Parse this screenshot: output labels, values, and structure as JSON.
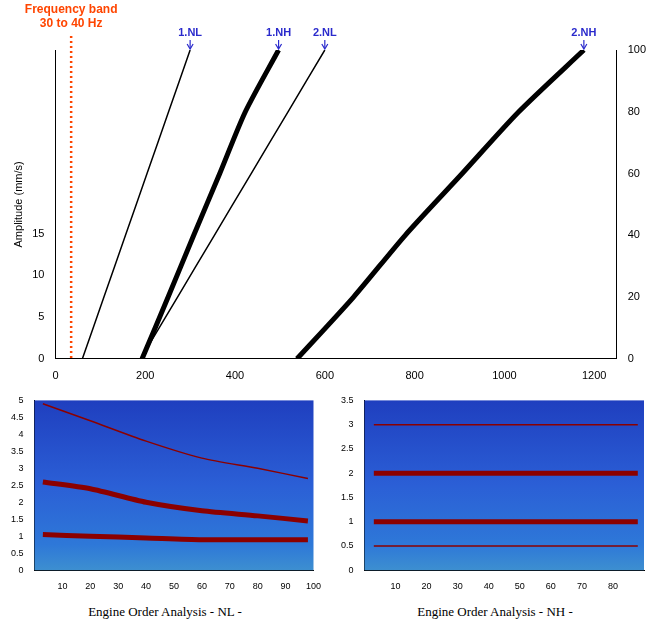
{
  "chart_data": [
    {
      "type": "line",
      "ylabel": "Amplitude (mm/s)",
      "xlim": [
        0,
        1250
      ],
      "xticks": [
        0,
        200,
        400,
        600,
        800,
        1000,
        1200
      ],
      "ylim": [
        0,
        37
      ],
      "yticks": [
        0,
        5,
        10,
        15
      ],
      "y2lim": [
        0,
        100
      ],
      "y2ticks": [
        0,
        20,
        40,
        60,
        80,
        100
      ],
      "grid": false,
      "series": [
        {
          "name": "1.NL",
          "color": "#000000",
          "line_style": "solid",
          "axis": "y2",
          "x": [
            60,
            108,
            156,
            204,
            252,
            300
          ],
          "values": [
            0,
            20,
            40,
            60,
            80,
            100
          ]
        },
        {
          "name": "1.NH",
          "color": "#000000",
          "line_style": "bold",
          "axis": "y2",
          "x": [
            193,
            251,
            308,
            366,
            423,
            497
          ],
          "values": [
            0,
            20,
            40,
            60,
            80,
            100
          ]
        },
        {
          "name": "2.NL",
          "color": "#000000",
          "line_style": "solid",
          "axis": "y2",
          "x": [
            190,
            272,
            354,
            436,
            518,
            600
          ],
          "values": [
            0,
            20,
            40,
            60,
            80,
            100
          ]
        },
        {
          "name": "2.NH",
          "color": "#000000",
          "line_style": "bold",
          "axis": "y2",
          "x": [
            538,
            664,
            779,
            906,
            1032,
            1177
          ],
          "values": [
            0,
            20,
            40,
            60,
            80,
            100
          ]
        }
      ],
      "annotations": [
        {
          "text": [
            "Frequency band",
            "30 to 40 Hz"
          ],
          "x": 35,
          "color": "#ff4500",
          "line_style": "dotted"
        }
      ]
    },
    {
      "type": "line",
      "caption": "Engine Order Analysis - NL -",
      "xlim": [
        0,
        100
      ],
      "xticks": [
        10,
        20,
        30,
        40,
        50,
        60,
        70,
        80,
        90,
        100
      ],
      "ylim": [
        0,
        5
      ],
      "yticks": [
        0,
        0.5,
        1,
        1.5,
        2,
        2.5,
        3,
        3.5,
        4,
        4.5,
        5
      ],
      "grid": false,
      "series": [
        {
          "color": "#8b0000",
          "line_style": "solid",
          "x": [
            3,
            20,
            40,
            60,
            80,
            98
          ],
          "values": [
            4.9,
            4.4,
            3.8,
            3.3,
            3.0,
            2.7
          ]
        },
        {
          "color": "#8b0000",
          "line_style": "bold",
          "x": [
            3,
            20,
            40,
            60,
            80,
            98
          ],
          "values": [
            2.6,
            2.4,
            2.0,
            1.75,
            1.6,
            1.45
          ]
        },
        {
          "color": "#8b0000",
          "line_style": "bold",
          "x": [
            3,
            20,
            40,
            60,
            80,
            98
          ],
          "values": [
            1.05,
            1.0,
            0.95,
            0.9,
            0.9,
            0.9
          ]
        }
      ]
    },
    {
      "type": "line",
      "caption": "Engine Order Analysis - NH -",
      "xlim": [
        0,
        90
      ],
      "xticks": [
        10,
        20,
        30,
        40,
        50,
        60,
        70,
        80
      ],
      "ylim": [
        0,
        3.5
      ],
      "yticks": [
        0,
        0.5,
        1,
        1.5,
        2,
        2.5,
        3,
        3.5
      ],
      "grid": false,
      "series": [
        {
          "color": "#8b0000",
          "line_style": "solid",
          "x": [
            3,
            20,
            40,
            60,
            80,
            88
          ],
          "values": [
            3.0,
            3.0,
            3.0,
            3.0,
            3.0,
            3.0
          ]
        },
        {
          "color": "#8b0000",
          "line_style": "bold",
          "x": [
            3,
            20,
            40,
            60,
            80,
            88
          ],
          "values": [
            2.0,
            2.0,
            2.0,
            2.0,
            2.0,
            2.0
          ]
        },
        {
          "color": "#8b0000",
          "line_style": "bold",
          "x": [
            3,
            20,
            40,
            60,
            80,
            88
          ],
          "values": [
            1.0,
            1.0,
            1.0,
            1.0,
            1.0,
            1.0
          ]
        },
        {
          "color": "#8b0000",
          "line_style": "solid",
          "x": [
            3,
            20,
            40,
            60,
            80,
            88
          ],
          "values": [
            0.5,
            0.5,
            0.5,
            0.5,
            0.5,
            0.5
          ]
        }
      ]
    }
  ]
}
